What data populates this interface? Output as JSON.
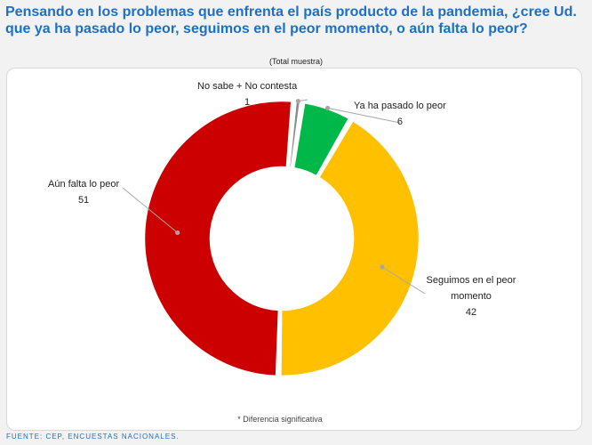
{
  "title": {
    "line1": "Pensando en los problemas que enfrenta el país producto de la pandemia, ¿cree Ud.",
    "line2": "que ya ha pasado lo peor, seguimos en el peor momento, o aún falta lo peor?"
  },
  "subtitle": "(Total muestra)",
  "footnote": "* Diferencia significativa",
  "source": "FUENTE: CEP, ENCUESTAS NACIONALES.",
  "colors": {
    "ya_ha_pasado": "#00b84a",
    "seguimos": "#ffc000",
    "aun_falta": "#cc0000",
    "no_sabe": "#8c8c8c"
  },
  "chart_data": {
    "type": "pie",
    "variant": "donut",
    "title": "(Total muestra)",
    "slices": [
      {
        "label": "No sabe + No contesta",
        "value": 1,
        "value_label": "1",
        "color": "#8c8c8c"
      },
      {
        "label": "Ya ha pasado lo peor",
        "value": 6,
        "value_label": "6",
        "color": "#00b84a"
      },
      {
        "label": "Seguimos en el peor momento",
        "value": 42,
        "value_label": "42",
        "color": "#ffc000"
      },
      {
        "label": "Aún falta lo peor",
        "value": 51,
        "value_label": "51",
        "color": "#cc0000"
      }
    ]
  }
}
